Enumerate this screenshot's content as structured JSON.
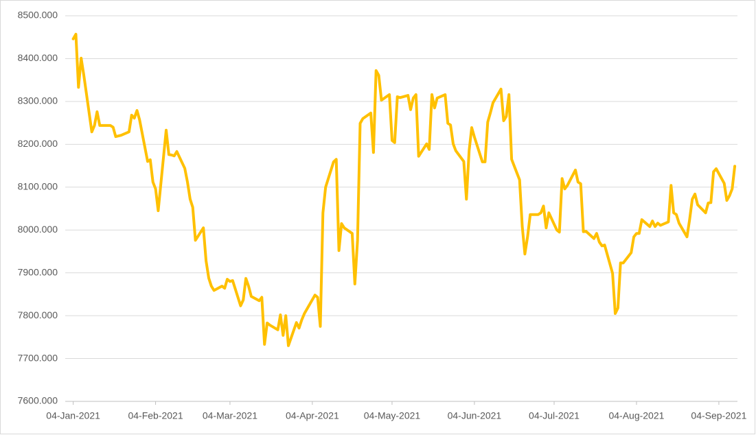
{
  "chart_data": {
    "type": "line",
    "x": [
      "2021-01-04",
      "2021-01-05",
      "2021-01-06",
      "2021-01-07",
      "2021-01-08",
      "2021-01-11",
      "2021-01-12",
      "2021-01-13",
      "2021-01-14",
      "2021-01-15",
      "2021-01-18",
      "2021-01-19",
      "2021-01-20",
      "2021-01-22",
      "2021-01-25",
      "2021-01-26",
      "2021-01-27",
      "2021-01-28",
      "2021-01-29",
      "2021-02-01",
      "2021-02-02",
      "2021-02-03",
      "2021-02-04",
      "2021-02-05",
      "2021-02-08",
      "2021-02-09",
      "2021-02-10",
      "2021-02-11",
      "2021-02-12",
      "2021-02-15",
      "2021-02-16",
      "2021-02-17",
      "2021-02-18",
      "2021-02-19",
      "2021-02-22",
      "2021-02-23",
      "2021-02-24",
      "2021-02-25",
      "2021-02-26",
      "2021-03-01",
      "2021-03-02",
      "2021-03-03",
      "2021-03-04",
      "2021-03-05",
      "2021-03-08",
      "2021-03-09",
      "2021-03-10",
      "2021-03-11",
      "2021-03-12",
      "2021-03-15",
      "2021-03-16",
      "2021-03-17",
      "2021-03-18",
      "2021-03-19",
      "2021-03-22",
      "2021-03-23",
      "2021-03-24",
      "2021-03-25",
      "2021-03-26",
      "2021-03-29",
      "2021-03-30",
      "2021-03-31",
      "2021-04-01",
      "2021-04-05",
      "2021-04-06",
      "2021-04-07",
      "2021-04-08",
      "2021-04-09",
      "2021-04-12",
      "2021-04-13",
      "2021-04-14",
      "2021-04-15",
      "2021-04-16",
      "2021-04-19",
      "2021-04-20",
      "2021-04-21",
      "2021-04-22",
      "2021-04-23",
      "2021-04-26",
      "2021-04-27",
      "2021-04-28",
      "2021-04-29",
      "2021-04-30",
      "2021-05-03",
      "2021-05-04",
      "2021-05-05",
      "2021-05-06",
      "2021-05-07",
      "2021-05-10",
      "2021-05-11",
      "2021-05-12",
      "2021-05-13",
      "2021-05-14",
      "2021-05-17",
      "2021-05-18",
      "2021-05-19",
      "2021-05-20",
      "2021-05-21",
      "2021-05-24",
      "2021-05-25",
      "2021-05-26",
      "2021-05-27",
      "2021-05-28",
      "2021-05-31",
      "2021-06-01",
      "2021-06-02",
      "2021-06-03",
      "2021-06-04",
      "2021-06-07",
      "2021-06-08",
      "2021-06-09",
      "2021-06-10",
      "2021-06-11",
      "2021-06-14",
      "2021-06-15",
      "2021-06-16",
      "2021-06-17",
      "2021-06-18",
      "2021-06-21",
      "2021-06-22",
      "2021-06-23",
      "2021-06-24",
      "2021-06-25",
      "2021-06-28",
      "2021-06-29",
      "2021-06-30",
      "2021-07-01",
      "2021-07-02",
      "2021-07-05",
      "2021-07-06",
      "2021-07-07",
      "2021-07-08",
      "2021-07-09",
      "2021-07-12",
      "2021-07-13",
      "2021-07-14",
      "2021-07-15",
      "2021-07-16",
      "2021-07-19",
      "2021-07-20",
      "2021-07-21",
      "2021-07-22",
      "2021-07-23",
      "2021-07-26",
      "2021-07-27",
      "2021-07-28",
      "2021-07-29",
      "2021-07-30",
      "2021-08-02",
      "2021-08-03",
      "2021-08-04",
      "2021-08-05",
      "2021-08-06",
      "2021-08-09",
      "2021-08-10",
      "2021-08-11",
      "2021-08-12",
      "2021-08-13",
      "2021-08-16",
      "2021-08-17",
      "2021-08-18",
      "2021-08-19",
      "2021-08-20",
      "2021-08-23",
      "2021-08-24",
      "2021-08-25",
      "2021-08-26",
      "2021-08-27",
      "2021-08-30",
      "2021-08-31",
      "2021-09-01",
      "2021-09-02",
      "2021-09-03",
      "2021-09-06",
      "2021-09-07",
      "2021-09-08",
      "2021-09-09",
      "2021-09-10"
    ],
    "series": [
      {
        "color": "#FFC000",
        "values": [
          8446,
          8457,
          8333,
          8401,
          8361,
          8229,
          8244,
          8276,
          8244,
          8244,
          8244,
          8240,
          8218,
          8221,
          8229,
          8268,
          8261,
          8279,
          8257,
          8160,
          8164,
          8112,
          8096,
          8045,
          8233,
          8176,
          8175,
          8173,
          8183,
          8144,
          8112,
          8072,
          8053,
          7976,
          8005,
          7928,
          7888,
          7869,
          7859,
          7869,
          7864,
          7885,
          7880,
          7882,
          7823,
          7837,
          7887,
          7869,
          7845,
          7835,
          7843,
          7733,
          7783,
          7778,
          7767,
          7802,
          7754,
          7800,
          7730,
          7784,
          7771,
          7790,
          7805,
          7848,
          7843,
          7775,
          8040,
          8100,
          8159,
          8165,
          7952,
          8015,
          8005,
          7992,
          7874,
          7976,
          8249,
          8260,
          8273,
          8181,
          8372,
          8361,
          8303,
          8316,
          8209,
          8204,
          8311,
          8309,
          8314,
          8281,
          8308,
          8316,
          8172,
          8201,
          8188,
          8316,
          8285,
          8308,
          8316,
          8249,
          8245,
          8201,
          8185,
          8160,
          8072,
          8185,
          8239,
          8217,
          8159,
          8159,
          8252,
          8273,
          8297,
          8329,
          8255,
          8265,
          8316,
          8165,
          8117,
          8008,
          7944,
          7984,
          8036,
          8036,
          8040,
          8056,
          8005,
          8040,
          8000,
          7995,
          8120,
          8096,
          8104,
          8140,
          8112,
          8108,
          7996,
          7997,
          7980,
          7992,
          7972,
          7963,
          7965,
          7899,
          7805,
          7818,
          7923,
          7923,
          7947,
          7984,
          7992,
          7992,
          8024,
          8008,
          8021,
          8008,
          8016,
          8011,
          8019,
          8104,
          8040,
          8036,
          8016,
          7984,
          8024,
          8072,
          8084,
          8059,
          8040,
          8063,
          8064,
          8136,
          8143,
          8109,
          8069,
          8080,
          8096,
          8149
        ]
      }
    ],
    "xlim": [
      "2021-01-01",
      "2021-09-11"
    ],
    "xticks": [
      {
        "value": "2021-01-04",
        "label": "04-Jan-2021"
      },
      {
        "value": "2021-02-04",
        "label": "04-Feb-2021"
      },
      {
        "value": "2021-03-04",
        "label": "04-Mar-2021"
      },
      {
        "value": "2021-04-04",
        "label": "04-Apr-2021"
      },
      {
        "value": "2021-05-04",
        "label": "04-May-2021"
      },
      {
        "value": "2021-06-04",
        "label": "04-Jun-2021"
      },
      {
        "value": "2021-07-04",
        "label": "04-Jul-2021"
      },
      {
        "value": "2021-08-04",
        "label": "04-Aug-2021"
      },
      {
        "value": "2021-09-04",
        "label": "04-Sep-2021"
      }
    ],
    "ylim": [
      7600,
      8500
    ],
    "yticks": [
      {
        "value": 7600,
        "label": "7600.000"
      },
      {
        "value": 7700,
        "label": "7700.000"
      },
      {
        "value": 7800,
        "label": "7800.000"
      },
      {
        "value": 7900,
        "label": "7900.000"
      },
      {
        "value": 8000,
        "label": "8000.000"
      },
      {
        "value": 8100,
        "label": "8100.000"
      },
      {
        "value": 8200,
        "label": "8200.000"
      },
      {
        "value": 8300,
        "label": "8300.000"
      },
      {
        "value": 8400,
        "label": "8400.000"
      },
      {
        "value": 8500,
        "label": "8500.000"
      }
    ],
    "grid": true
  }
}
